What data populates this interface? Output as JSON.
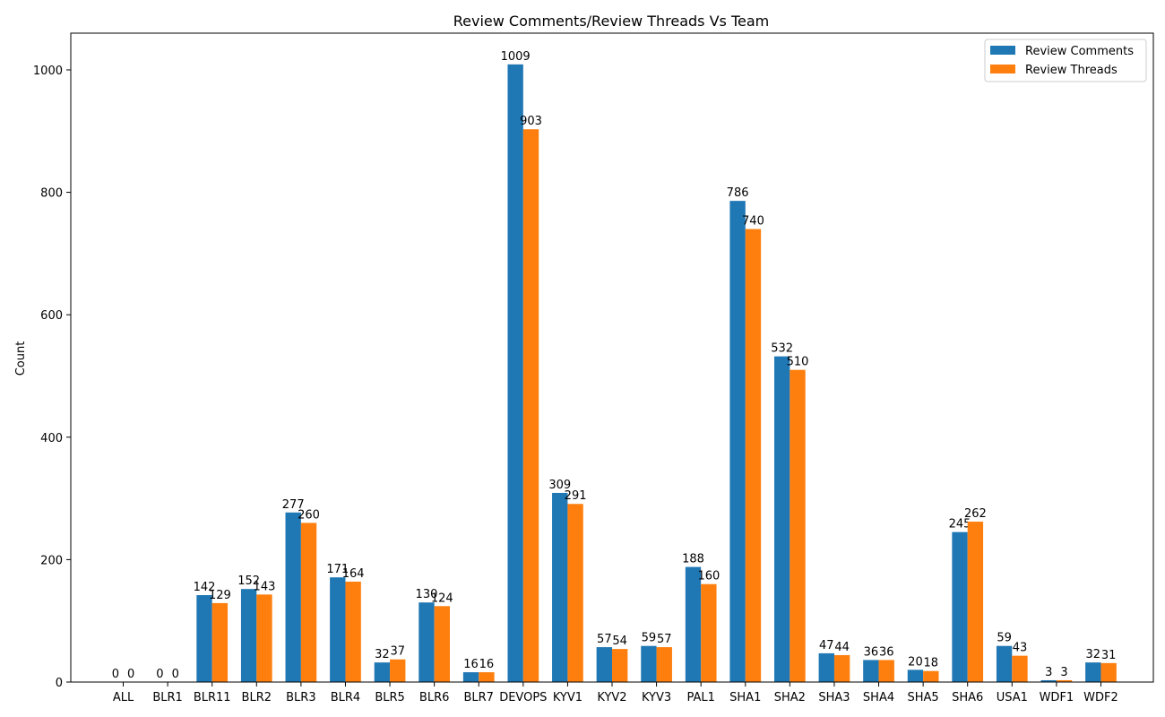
{
  "chart_data": {
    "type": "bar",
    "title": "Review Comments/Review Threads Vs Team",
    "xlabel": "",
    "ylabel": "Count",
    "ylim": [
      0,
      1060
    ],
    "yticks": [
      0,
      200,
      400,
      600,
      800,
      1000
    ],
    "grid": false,
    "legend_position": "top-right",
    "categories": [
      "ALL",
      "BLR1",
      "BLR11",
      "BLR2",
      "BLR3",
      "BLR4",
      "BLR5",
      "BLR6",
      "BLR7",
      "DEVOPS",
      "KYV1",
      "KYV2",
      "KYV3",
      "PAL1",
      "SHA1",
      "SHA2",
      "SHA3",
      "SHA4",
      "SHA5",
      "SHA6",
      "USA1",
      "WDF1",
      "WDF2"
    ],
    "series": [
      {
        "name": "Review Comments",
        "color": "#1f77b4",
        "values": [
          0,
          0,
          142,
          152,
          277,
          171,
          32,
          130,
          16,
          1009,
          309,
          57,
          59,
          188,
          786,
          532,
          47,
          36,
          20,
          245,
          59,
          3,
          32
        ]
      },
      {
        "name": "Review Threads",
        "color": "#ff7f0e",
        "values": [
          0,
          0,
          129,
          143,
          260,
          164,
          37,
          124,
          16,
          903,
          291,
          54,
          57,
          160,
          740,
          510,
          44,
          36,
          18,
          262,
          43,
          3,
          31
        ]
      }
    ]
  }
}
